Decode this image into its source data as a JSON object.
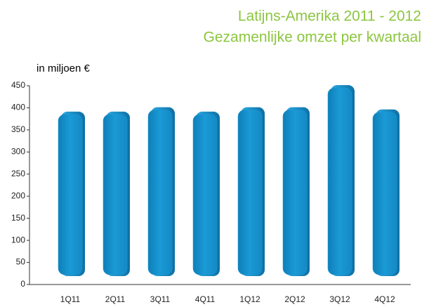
{
  "chart_data": {
    "type": "bar",
    "title": "Latijns-Amerika 2011 - 2012",
    "subtitle": "Gezamenlijke omzet per kwartaal",
    "y_label": "in miljoen €",
    "categories": [
      "1Q11",
      "2Q11",
      "3Q11",
      "4Q11",
      "1Q12",
      "2Q12",
      "3Q12",
      "4Q12"
    ],
    "values": [
      385,
      385,
      395,
      385,
      395,
      395,
      445,
      390
    ],
    "color": "#1a9ad6",
    "ylim": [
      0,
      450
    ],
    "yticks": [
      0,
      50,
      100,
      150,
      200,
      250,
      300,
      350,
      400,
      450
    ],
    "grid": false
  }
}
